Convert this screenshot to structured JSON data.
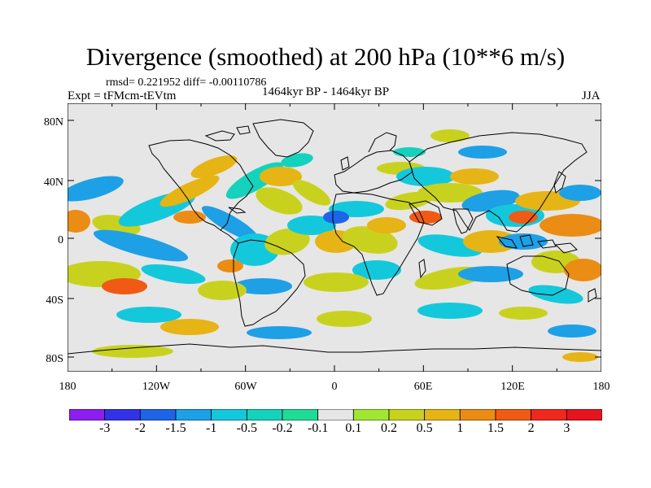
{
  "title": "Divergence (smoothed) at 200 hPa (10**6 m/s)",
  "stats": "rmsd= 0.221952 diff= -0.00110786",
  "experiment": "Expt = tFMcm-tEVtm",
  "period": "1464kyr BP - 1464kyr BP",
  "season": "JJA",
  "map": {
    "lat_labels": [
      "80N",
      "40N",
      "0",
      "40S",
      "80S"
    ],
    "lon_labels": [
      "180",
      "120W",
      "60W",
      "0",
      "60E",
      "120E",
      "180"
    ],
    "background_color": "#e6e6e6"
  },
  "colorbar": {
    "labels": [
      "-3",
      "-2",
      "-1.5",
      "-1",
      "-0.5",
      "-0.2",
      "-0.1",
      "0.1",
      "0.2",
      "0.5",
      "1",
      "1.5",
      "2",
      "3"
    ],
    "colors": [
      "#8c1ef0",
      "#3232e6",
      "#1e64e6",
      "#1ea0e6",
      "#14c8dc",
      "#14d2bc",
      "#1edc96",
      "#e6e6e6",
      "#a0e632",
      "#c8d21e",
      "#e6b414",
      "#eb8c14",
      "#f05a14",
      "#f0281e",
      "#e6141e"
    ]
  }
}
